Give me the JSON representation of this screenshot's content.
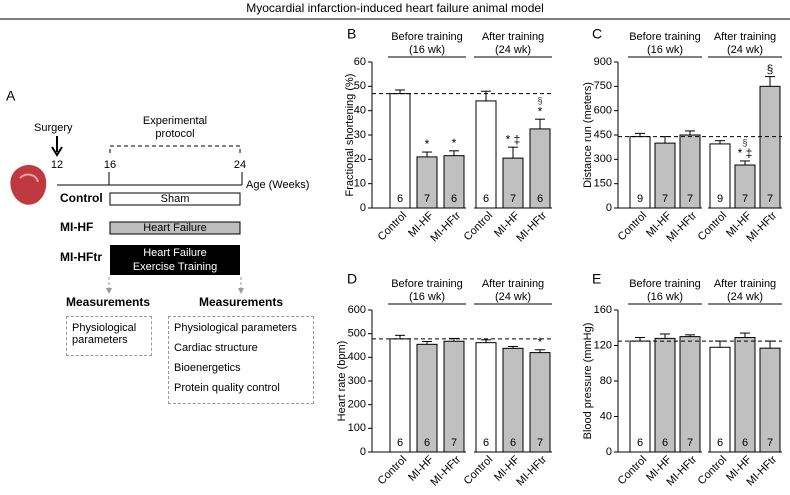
{
  "title": "Myocardial infarction-induced heart failure animal model",
  "panel_a": {
    "label": "A",
    "surgery": "Surgery",
    "protocol": [
      "Experimental",
      "protocol"
    ],
    "ages": [
      12,
      16,
      24
    ],
    "age_axis": "Age (Weeks)",
    "rows": [
      {
        "label": "Control",
        "box": [
          "Sham"
        ]
      },
      {
        "label": "MI-HF",
        "box": [
          "Heart Failure"
        ]
      },
      {
        "label": "MI-HFtr",
        "box": [
          "Heart Failure",
          "Exercise Training"
        ]
      }
    ],
    "measurements": [
      {
        "heading": "Measurements",
        "items": [
          "Physiological parameters"
        ]
      },
      {
        "heading": "Measurements",
        "items": [
          "Physiological parameters",
          "Cardiac structure",
          "Bioenergetics",
          "Protein quality control"
        ]
      }
    ]
  },
  "chart_data": [
    {
      "type": "bar",
      "panel": "B",
      "y_label": "Fractional shortening (%)",
      "ylim": [
        0,
        60
      ],
      "yticks": [
        0,
        10,
        20,
        30,
        40,
        50,
        60
      ],
      "colors": [
        "#ffffff",
        "#c0c0c0",
        "#c0c0c0"
      ],
      "reference_line": true,
      "groups": [
        {
          "title": "Before training",
          "subtitle": "(16 wk)",
          "categories": [
            "Control",
            "MI-HF",
            "MI-HFtr"
          ],
          "values": [
            47,
            21,
            21.5
          ],
          "errors": [
            1.5,
            2,
            2
          ],
          "n": [
            6,
            7,
            6
          ],
          "markers": [
            null,
            [
              "*"
            ],
            [
              "*"
            ]
          ]
        },
        {
          "title": "After training",
          "subtitle": "(24 wk)",
          "categories": [
            "Control",
            "MI-HF",
            "MI-HFtr"
          ],
          "values": [
            44,
            20.5,
            32.5
          ],
          "errors": [
            4,
            4.5,
            4
          ],
          "n": [
            6,
            7,
            6
          ],
          "markers": [
            null,
            [
              "* ‡"
            ],
            [
              "§",
              "*"
            ]
          ]
        }
      ]
    },
    {
      "type": "bar",
      "panel": "C",
      "y_label": "Distance run (meters)",
      "ylim": [
        0,
        900
      ],
      "yticks": [
        0,
        150,
        300,
        450,
        600,
        750,
        900
      ],
      "colors": [
        "#ffffff",
        "#c0c0c0",
        "#c0c0c0"
      ],
      "reference_line": true,
      "groups": [
        {
          "title": "Before training",
          "subtitle": "(16 wk)",
          "categories": [
            "Control",
            "MI-HF",
            "MI-HFtr"
          ],
          "values": [
            440,
            400,
            450
          ],
          "errors": [
            20,
            40,
            25
          ],
          "n": [
            9,
            7,
            7
          ],
          "markers": [
            null,
            null,
            null
          ]
        },
        {
          "title": "After training",
          "subtitle": "(24 wk)",
          "categories": [
            "Control",
            "MI-HF",
            "MI-HFtr"
          ],
          "values": [
            395,
            265,
            750
          ],
          "errors": [
            20,
            25,
            60
          ],
          "n": [
            9,
            7,
            7
          ],
          "markers": [
            null,
            [
              "§",
              "* ‡"
            ],
            [
              "§"
            ]
          ]
        }
      ]
    },
    {
      "type": "bar",
      "panel": "D",
      "y_label": "Heart rate (bpm)",
      "ylim": [
        0,
        600
      ],
      "yticks": [
        0,
        100,
        200,
        300,
        400,
        500,
        600
      ],
      "colors": [
        "#ffffff",
        "#c0c0c0",
        "#c0c0c0"
      ],
      "reference_line": true,
      "groups": [
        {
          "title": "Before training",
          "subtitle": "(16 wk)",
          "categories": [
            "Control",
            "MI-HF",
            "MI-HFtr"
          ],
          "values": [
            478,
            455,
            468
          ],
          "errors": [
            15,
            12,
            12
          ],
          "n": [
            6,
            6,
            7
          ],
          "markers": [
            null,
            null,
            null
          ]
        },
        {
          "title": "After training",
          "subtitle": "(24 wk)",
          "categories": [
            "Control",
            "MI-HF",
            "MI-HFtr"
          ],
          "values": [
            462,
            438,
            420
          ],
          "errors": [
            12,
            8,
            12
          ],
          "n": [
            6,
            6,
            7
          ],
          "markers": [
            null,
            null,
            [
              "*"
            ]
          ]
        }
      ]
    },
    {
      "type": "bar",
      "panel": "E",
      "y_label": "Blood pressure (mmHg)",
      "ylim": [
        0,
        160
      ],
      "yticks": [
        0,
        40,
        80,
        120,
        160
      ],
      "colors": [
        "#ffffff",
        "#c0c0c0",
        "#c0c0c0"
      ],
      "reference_line": true,
      "groups": [
        {
          "title": "Before training",
          "subtitle": "(16 wk)",
          "categories": [
            "Control",
            "MI-HF",
            "MI-HFtr"
          ],
          "values": [
            125,
            128,
            130
          ],
          "errors": [
            4,
            5,
            2
          ],
          "n": [
            6,
            6,
            7
          ],
          "markers": [
            null,
            null,
            null
          ]
        },
        {
          "title": "After training",
          "subtitle": "(24 wk)",
          "categories": [
            "Control",
            "MI-HF",
            "MI-HFtr"
          ],
          "values": [
            118,
            129,
            117
          ],
          "errors": [
            7,
            5,
            8
          ],
          "n": [
            6,
            6,
            7
          ],
          "markers": [
            null,
            null,
            null
          ]
        }
      ]
    }
  ]
}
